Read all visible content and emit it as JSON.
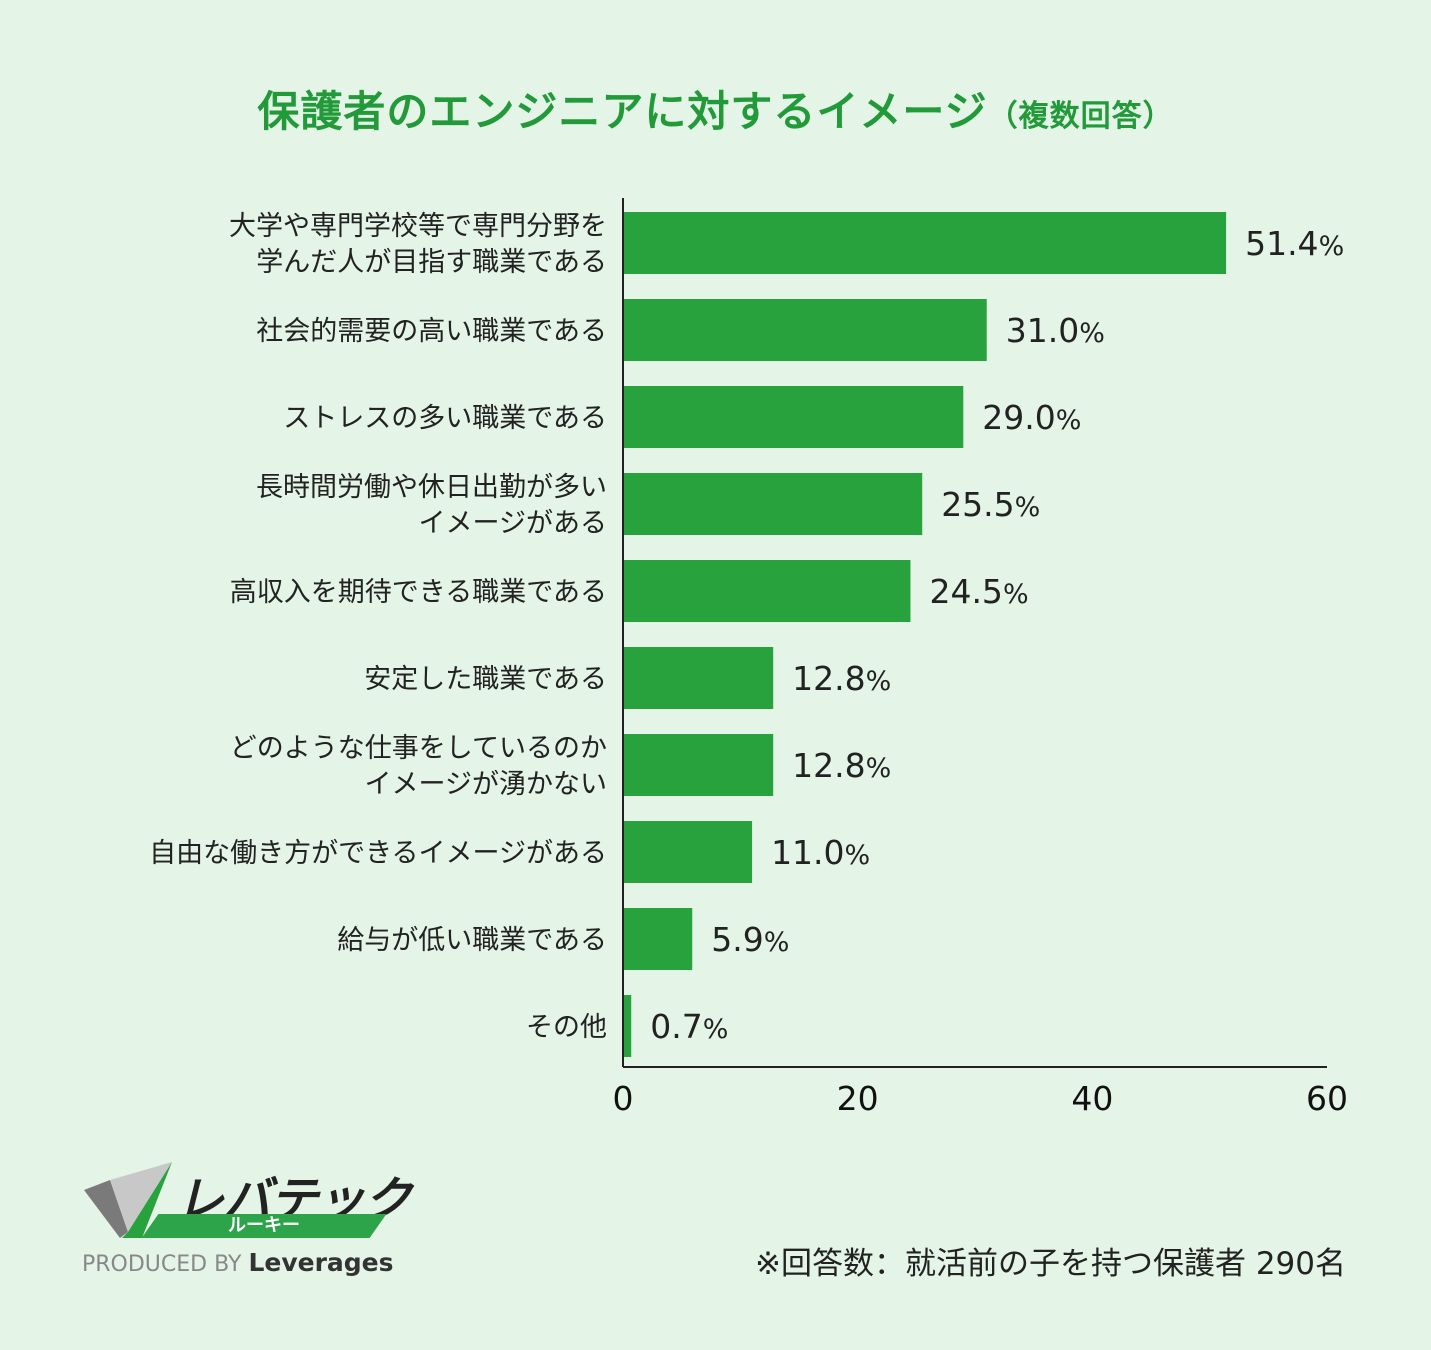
{
  "title": "保護者のエンジニアに対するイメージ",
  "subtitle": "（複数回答）",
  "note": "※回答数：就活前の子を持つ保護者 290名",
  "brand": {
    "name": "レバテック",
    "sub": "ルーキー",
    "produced_by": "PRODUCED BY",
    "company": "Leverages"
  },
  "colors": {
    "bar": "#27a23c",
    "title": "#229a3a",
    "background": "#e4f4e6"
  },
  "chart_data": {
    "type": "bar",
    "orientation": "horizontal",
    "categories": [
      [
        "大学や専門学校等で専門分野を",
        "学んだ人が目指す職業である"
      ],
      [
        "社会的需要の高い職業である"
      ],
      [
        "ストレスの多い職業である"
      ],
      [
        "長時間労働や休日出勤が多い",
        "イメージがある"
      ],
      [
        "高収入を期待できる職業である"
      ],
      [
        "安定した職業である"
      ],
      [
        "どのような仕事をしているのか",
        "イメージが湧かない"
      ],
      [
        "自由な働き方ができるイメージがある"
      ],
      [
        "給与が低い職業である"
      ],
      [
        "その他"
      ]
    ],
    "values": [
      51.4,
      31.0,
      29.0,
      25.5,
      24.5,
      12.8,
      12.8,
      11.0,
      5.9,
      0.7
    ],
    "value_labels": [
      "51.4",
      "31.0",
      "29.0",
      "25.5",
      "24.5",
      "12.8",
      "12.8",
      "11.0",
      "5.9",
      "0.7"
    ],
    "unit": "%",
    "xlim": [
      0,
      60
    ],
    "xticks": [
      0,
      20,
      40,
      60
    ],
    "grid": false,
    "legend": "none"
  }
}
